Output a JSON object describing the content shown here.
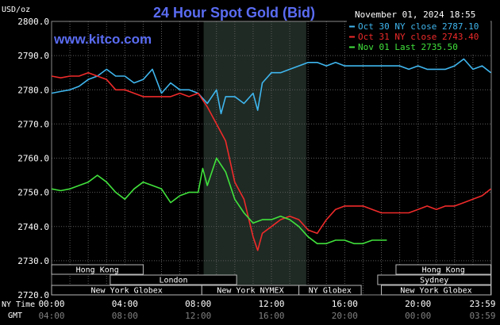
{
  "chart_data": {
    "type": "line",
    "title": "24 Hour Spot Gold (Bid)",
    "watermark": "www.kitco.com",
    "timestamp": "November 01, 2024 18:55",
    "ylabel": "USD/oz",
    "ylim": [
      2720,
      2800
    ],
    "yticks": [
      "2800.0",
      "2790.0",
      "2780.0",
      "2770.0",
      "2760.0",
      "2750.0",
      "2740.0",
      "2730.0",
      "2720.0"
    ],
    "xlim": [
      0,
      24
    ],
    "time_axes": [
      {
        "label": "NY Time",
        "ticks": [
          "00:00",
          "04:00",
          "08:00",
          "12:00",
          "16:00",
          "20:00",
          "23:59"
        ]
      },
      {
        "label": "GMT",
        "ticks": [
          "04:00",
          "08:00",
          "12:00",
          "16:00",
          "20:00",
          "00:00",
          "03:59"
        ]
      }
    ],
    "tick_hours": [
      0,
      4,
      8,
      12,
      16,
      20,
      23.98
    ],
    "shaded_region": [
      8.3,
      13.9
    ],
    "grid": true,
    "legend_position": "top-right",
    "series": [
      {
        "name": "Oct 30 NY close 2787.10",
        "color": "#3fb6ee",
        "x": [
          0,
          0.5,
          1,
          1.5,
          2,
          2.5,
          3,
          3.5,
          4,
          4.5,
          5,
          5.5,
          6,
          6.5,
          7,
          7.5,
          8,
          8.5,
          9,
          9.25,
          9.5,
          10,
          10.5,
          11,
          11.25,
          11.5,
          12,
          12.5,
          13,
          13.5,
          14,
          14.5,
          15,
          15.5,
          16,
          16.5,
          17,
          17.5,
          18,
          18.5,
          19,
          19.5,
          20,
          20.5,
          21,
          21.5,
          22,
          22.5,
          23,
          23.5,
          23.98
        ],
        "y": [
          2779,
          2779.5,
          2780,
          2781,
          2783,
          2784,
          2786,
          2784,
          2784,
          2782,
          2783,
          2786,
          2779,
          2782,
          2780,
          2780,
          2779,
          2776,
          2780,
          2773,
          2778,
          2778,
          2776,
          2779,
          2774,
          2782,
          2785,
          2785,
          2786,
          2787,
          2788,
          2788,
          2787,
          2788,
          2787,
          2787,
          2787,
          2787,
          2787,
          2787,
          2787,
          2786,
          2787,
          2786,
          2786,
          2786,
          2787,
          2789,
          2786,
          2787,
          2785
        ]
      },
      {
        "name": "Oct 31 NY close 2743.40",
        "color": "#ef2a2a",
        "x": [
          0,
          0.5,
          1,
          1.5,
          2,
          2.5,
          3,
          3.5,
          4,
          4.5,
          5,
          5.5,
          6,
          6.5,
          7,
          7.5,
          8,
          8.5,
          9,
          9.5,
          10,
          10.5,
          11,
          11.25,
          11.5,
          12,
          12.5,
          13,
          13.5,
          14,
          14.5,
          15,
          15.5,
          16,
          16.5,
          17,
          17.5,
          18,
          18.5,
          19,
          19.5,
          20,
          20.5,
          21,
          21.5,
          22,
          22.5,
          23,
          23.5,
          23.98
        ],
        "y": [
          2784,
          2783.5,
          2784,
          2784,
          2785,
          2784,
          2783,
          2780,
          2780,
          2779,
          2778,
          2778,
          2778,
          2778,
          2779,
          2778,
          2779,
          2775,
          2770,
          2765,
          2753,
          2748,
          2737,
          2733,
          2738,
          2740,
          2742,
          2743,
          2742,
          2739,
          2738,
          2742,
          2745,
          2746,
          2746,
          2746,
          2745,
          2744,
          2744,
          2744,
          2744,
          2745,
          2746,
          2745,
          2746,
          2746,
          2747,
          2748,
          2749,
          2751
        ]
      },
      {
        "name": "Nov 01 Last 2735.50",
        "color": "#41e23c",
        "x": [
          0,
          0.5,
          1,
          1.5,
          2,
          2.5,
          3,
          3.5,
          4,
          4.5,
          5,
          5.5,
          6,
          6.5,
          7,
          7.5,
          8,
          8.25,
          8.5,
          9,
          9.25,
          9.5,
          10,
          10.5,
          11,
          11.5,
          12,
          12.5,
          13,
          13.5,
          14,
          14.5,
          15,
          15.5,
          16,
          16.5,
          17,
          17.5,
          18,
          18.3
        ],
        "y": [
          2751,
          2750.5,
          2751,
          2752,
          2753,
          2755,
          2753,
          2750,
          2748,
          2751,
          2753,
          2752,
          2751,
          2747,
          2749,
          2750,
          2750,
          2757,
          2752,
          2760,
          2758,
          2756,
          2748,
          2744,
          2741,
          2742,
          2742,
          2743,
          2742,
          2740,
          2737,
          2735,
          2735,
          2736,
          2736,
          2735,
          2735,
          2736,
          2736,
          2736
        ]
      }
    ],
    "market_sessions": [
      {
        "name": "Hong Kong",
        "start": 0,
        "end": 5,
        "row": 0
      },
      {
        "name": "Hong Kong",
        "start": 18.8,
        "end": 23.98,
        "row": 0
      },
      {
        "name": "London",
        "start": 3.2,
        "end": 10.1,
        "row": 1
      },
      {
        "name": "Sydney",
        "start": 17.8,
        "end": 23.98,
        "row": 1
      },
      {
        "name": "New York Globex",
        "start": 0,
        "end": 8.2,
        "row": 2
      },
      {
        "name": "New York NYMEX",
        "start": 8.2,
        "end": 13.5,
        "row": 2
      },
      {
        "name": "NY Globex",
        "start": 13.5,
        "end": 16.9,
        "row": 2
      },
      {
        "name": "New York Globex",
        "start": 18.0,
        "end": 23.98,
        "row": 2
      }
    ]
  }
}
